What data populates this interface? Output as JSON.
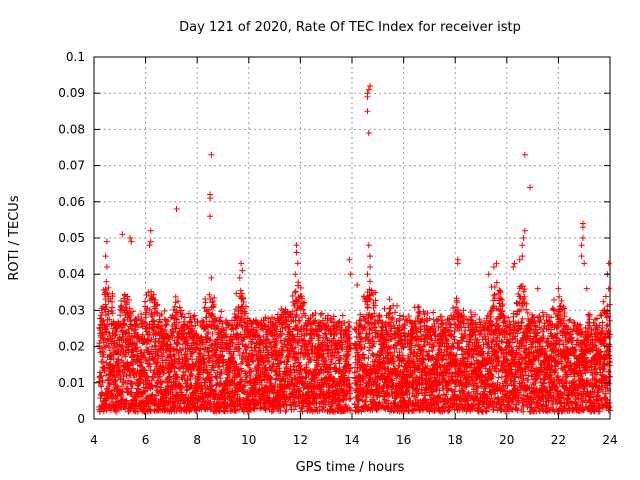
{
  "chart_data": {
    "type": "scatter",
    "title": "Day 121 of 2020, Rate Of TEC Index for receiver istp",
    "xlabel": "GPS time / hours",
    "ylabel": "ROTI / TECUs",
    "xlim": [
      4,
      24
    ],
    "ylim": [
      0,
      0.1
    ],
    "xticks": [
      4,
      6,
      8,
      10,
      12,
      14,
      16,
      18,
      20,
      22,
      24
    ],
    "yticks": [
      0,
      0.01,
      0.02,
      0.03,
      0.04,
      0.05,
      0.06,
      0.07,
      0.08,
      0.09,
      0.1
    ],
    "xtick_labels": [
      "4",
      "6",
      "8",
      "10",
      "12",
      "14",
      "16",
      "18",
      "20",
      "22",
      "24"
    ],
    "ytick_labels": [
      "0",
      "0.01",
      "0.02",
      "0.03",
      "0.04",
      "0.05",
      "0.06",
      "0.07",
      "0.08",
      "0.09",
      "0.1"
    ],
    "grid": true,
    "marker": "+",
    "series": [
      {
        "name": "ROTI",
        "color": "#ff0000",
        "highlights": [
          {
            "x": 4.5,
            "y": 0.049
          },
          {
            "x": 4.45,
            "y": 0.045
          },
          {
            "x": 4.5,
            "y": 0.042
          },
          {
            "x": 5.1,
            "y": 0.051
          },
          {
            "x": 5.4,
            "y": 0.05
          },
          {
            "x": 5.45,
            "y": 0.049
          },
          {
            "x": 6.2,
            "y": 0.052
          },
          {
            "x": 6.2,
            "y": 0.049
          },
          {
            "x": 6.15,
            "y": 0.048
          },
          {
            "x": 7.2,
            "y": 0.058
          },
          {
            "x": 8.55,
            "y": 0.073
          },
          {
            "x": 8.5,
            "y": 0.062
          },
          {
            "x": 8.5,
            "y": 0.061
          },
          {
            "x": 8.5,
            "y": 0.056
          },
          {
            "x": 8.55,
            "y": 0.039
          },
          {
            "x": 9.7,
            "y": 0.043
          },
          {
            "x": 9.75,
            "y": 0.041
          },
          {
            "x": 9.65,
            "y": 0.039
          },
          {
            "x": 11.85,
            "y": 0.048
          },
          {
            "x": 11.85,
            "y": 0.046
          },
          {
            "x": 11.9,
            "y": 0.043
          },
          {
            "x": 11.8,
            "y": 0.04
          },
          {
            "x": 13.9,
            "y": 0.044
          },
          {
            "x": 13.95,
            "y": 0.04
          },
          {
            "x": 14.7,
            "y": 0.092
          },
          {
            "x": 14.65,
            "y": 0.091
          },
          {
            "x": 14.6,
            "y": 0.09
          },
          {
            "x": 14.6,
            "y": 0.089
          },
          {
            "x": 14.6,
            "y": 0.085
          },
          {
            "x": 14.65,
            "y": 0.079
          },
          {
            "x": 14.65,
            "y": 0.048
          },
          {
            "x": 14.7,
            "y": 0.045
          },
          {
            "x": 14.7,
            "y": 0.042
          },
          {
            "x": 14.6,
            "y": 0.04
          },
          {
            "x": 14.2,
            "y": 0.037
          },
          {
            "x": 18.1,
            "y": 0.044
          },
          {
            "x": 18.1,
            "y": 0.043
          },
          {
            "x": 19.6,
            "y": 0.043
          },
          {
            "x": 19.5,
            "y": 0.042
          },
          {
            "x": 19.3,
            "y": 0.04
          },
          {
            "x": 20.3,
            "y": 0.043
          },
          {
            "x": 20.25,
            "y": 0.042
          },
          {
            "x": 20.7,
            "y": 0.073
          },
          {
            "x": 20.9,
            "y": 0.064
          },
          {
            "x": 20.7,
            "y": 0.052
          },
          {
            "x": 20.65,
            "y": 0.05
          },
          {
            "x": 20.6,
            "y": 0.048
          },
          {
            "x": 20.6,
            "y": 0.045
          },
          {
            "x": 20.5,
            "y": 0.044
          },
          {
            "x": 21.2,
            "y": 0.036
          },
          {
            "x": 22.0,
            "y": 0.036
          },
          {
            "x": 22.95,
            "y": 0.054
          },
          {
            "x": 22.95,
            "y": 0.053
          },
          {
            "x": 22.95,
            "y": 0.05
          },
          {
            "x": 22.9,
            "y": 0.048
          },
          {
            "x": 22.9,
            "y": 0.045
          },
          {
            "x": 23.0,
            "y": 0.043
          },
          {
            "x": 23.1,
            "y": 0.036
          },
          {
            "x": 23.95,
            "y": 0.043
          },
          {
            "x": 23.9,
            "y": 0.04
          },
          {
            "x": 23.95,
            "y": 0.036
          }
        ],
        "dense_band": {
          "x_start": 4.2,
          "x_end": 24,
          "gap": [
            13.95,
            14.1
          ],
          "y_low": 0.002,
          "y_high_typical": 0.03,
          "y_high_peaks": [
            {
              "x": 4.5,
              "y": 0.04
            },
            {
              "x": 5.2,
              "y": 0.036
            },
            {
              "x": 6.2,
              "y": 0.039
            },
            {
              "x": 7.2,
              "y": 0.035
            },
            {
              "x": 8.5,
              "y": 0.038
            },
            {
              "x": 9.7,
              "y": 0.04
            },
            {
              "x": 11.5,
              "y": 0.034
            },
            {
              "x": 11.9,
              "y": 0.04
            },
            {
              "x": 14.7,
              "y": 0.042
            },
            {
              "x": 15.5,
              "y": 0.034
            },
            {
              "x": 16.6,
              "y": 0.034
            },
            {
              "x": 18.1,
              "y": 0.036
            },
            {
              "x": 19.6,
              "y": 0.043
            },
            {
              "x": 20.6,
              "y": 0.04
            },
            {
              "x": 22.0,
              "y": 0.036
            },
            {
              "x": 23.9,
              "y": 0.036
            }
          ]
        }
      }
    ]
  }
}
